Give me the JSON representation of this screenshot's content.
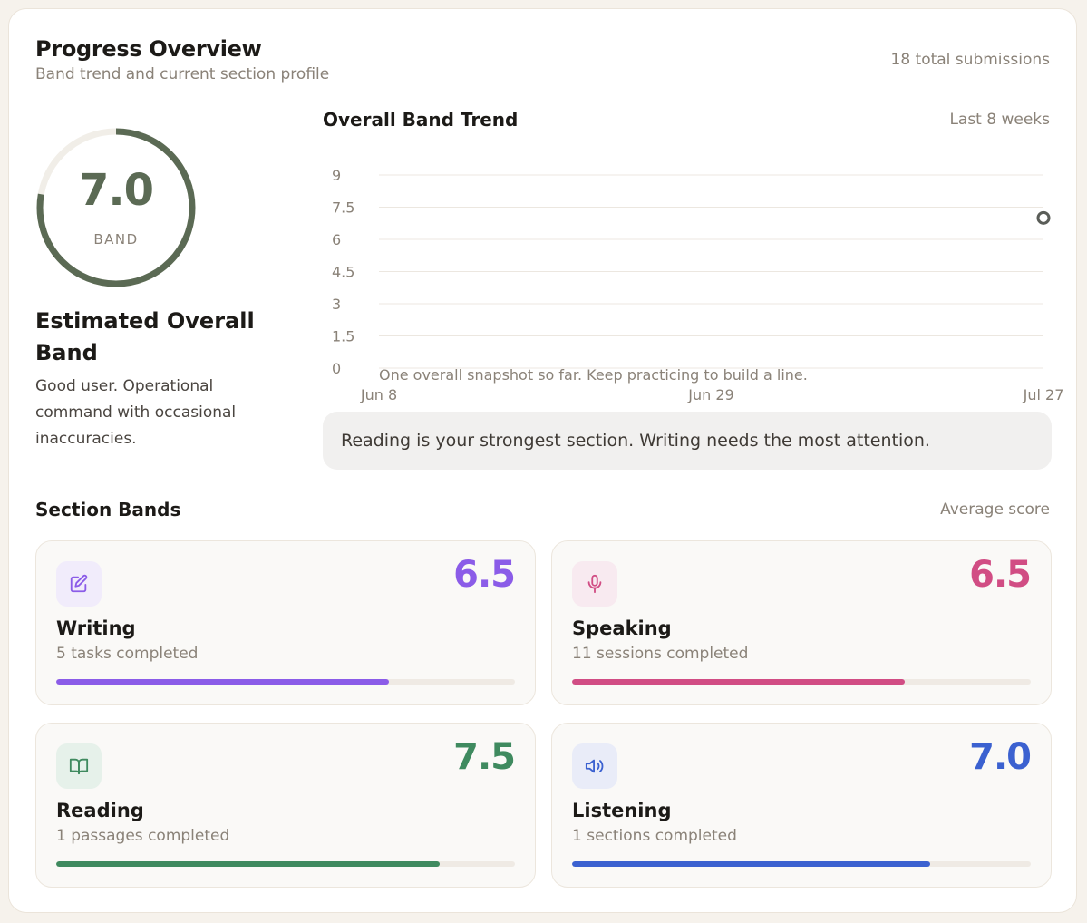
{
  "header": {
    "title": "Progress Overview",
    "subtitle": "Band trend and current section profile",
    "total": "18 total submissions"
  },
  "overall": {
    "band": "7.0",
    "band_label": "BAND",
    "band_value": 7.0,
    "ring_color": "#5b6a54",
    "title": "Estimated Overall Band",
    "description": "Good user. Operational command with occasional inaccuracies."
  },
  "chart_data": {
    "type": "line",
    "title": "Overall Band Trend",
    "subtitle": "Last 8 weeks",
    "y_ticks": [
      "9",
      "7.5",
      "6",
      "4.5",
      "3",
      "1.5",
      "0"
    ],
    "x_ticks": [
      "Jun 8",
      "Jun 29",
      "Jul 27"
    ],
    "ylim": [
      0,
      9
    ],
    "grid": true,
    "series": [
      {
        "values": [
          {
            "x": "Jul 27",
            "y": 7.0
          }
        ]
      }
    ],
    "note": "One overall snapshot so far. Keep practicing to build a line."
  },
  "insight": "Reading is your strongest section. Writing needs the most attention.",
  "sections": {
    "title": "Section Bands",
    "caption": "Average score",
    "items": [
      {
        "key": "writing",
        "name": "Writing",
        "score": "6.5",
        "meta": "5 tasks completed",
        "progress": 0.725,
        "color": "#8b5ce8",
        "icon_bg": "#f1ecfb",
        "icon": "edit-icon"
      },
      {
        "key": "speaking",
        "name": "Speaking",
        "score": "6.5",
        "meta": "11 sessions completed",
        "progress": 0.725,
        "color": "#d14d84",
        "icon_bg": "#f8eaf0",
        "icon": "microphone-icon"
      },
      {
        "key": "reading",
        "name": "Reading",
        "score": "7.5",
        "meta": "1 passages completed",
        "progress": 0.835,
        "color": "#3f8a5f",
        "icon_bg": "#e6f1ea",
        "icon": "book-icon"
      },
      {
        "key": "listening",
        "name": "Listening",
        "score": "7.0",
        "meta": "1 sections completed",
        "progress": 0.78,
        "color": "#3b61d0",
        "icon_bg": "#e9ecf8",
        "icon": "speaker-icon"
      }
    ]
  }
}
